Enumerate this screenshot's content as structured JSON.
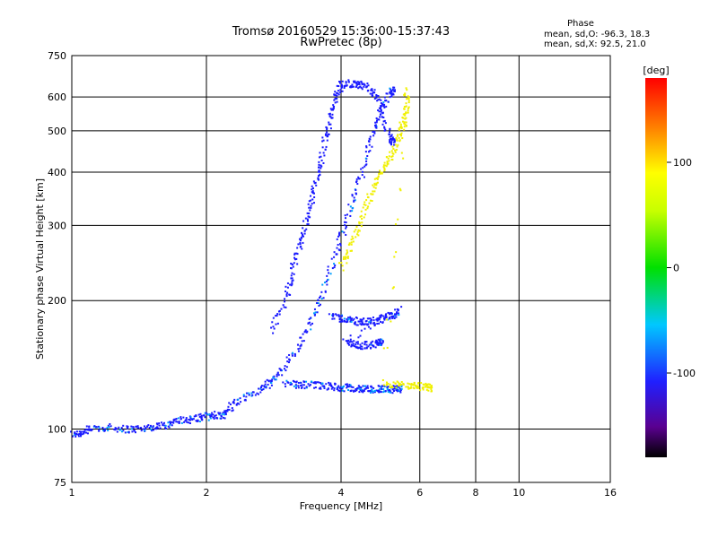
{
  "chart_data": {
    "type": "scatter",
    "title": "Tromsø 20160529 15:36:00-15:37:43",
    "subtitle": "RwPretec (8p)",
    "xlabel": "Frequency [MHz]",
    "ylabel": "Stationary phase Virtual Height [km]",
    "x_scale": "log",
    "y_scale": "log",
    "xlim": [
      1,
      16
    ],
    "ylim": [
      75,
      750
    ],
    "x_ticks": [
      "1",
      "2",
      "4",
      "6",
      "8",
      "10",
      "16"
    ],
    "x_tick_values": [
      1,
      2,
      4,
      6,
      8,
      10,
      16
    ],
    "y_ticks": [
      "75",
      "100",
      "200",
      "300",
      "400",
      "500",
      "600",
      "750"
    ],
    "y_tick_values": [
      75,
      100,
      200,
      300,
      400,
      500,
      600,
      750
    ],
    "grid": true,
    "colorbar": {
      "label": "[deg]",
      "range": [
        -180,
        180
      ],
      "ticks": [
        "100",
        "0",
        "-100"
      ],
      "tick_values": [
        100,
        0,
        -100
      ]
    },
    "stats": {
      "header": "Phase",
      "o_line": "mean, sd,O: -96.3, 18.3",
      "x_line": "mean, sd,X:  92.5, 21.0"
    },
    "traces": [
      {
        "name_hint": "O-mode low F trace",
        "phase": -95,
        "points": [
          [
            1.0,
            97
          ],
          [
            1.05,
            98
          ],
          [
            1.1,
            100
          ],
          [
            1.2,
            101
          ],
          [
            1.3,
            100
          ],
          [
            1.4,
            100
          ],
          [
            1.5,
            101
          ],
          [
            1.6,
            102
          ],
          [
            1.7,
            104
          ],
          [
            1.8,
            105
          ],
          [
            1.9,
            106
          ],
          [
            2.0,
            107
          ],
          [
            2.1,
            108
          ],
          [
            2.2,
            108
          ],
          [
            2.3,
            115
          ],
          [
            2.5,
            120
          ],
          [
            2.7,
            125
          ],
          [
            2.8,
            130
          ],
          [
            3.0,
            140
          ],
          [
            3.2,
            155
          ],
          [
            3.4,
            175
          ],
          [
            3.6,
            200
          ],
          [
            3.8,
            240
          ],
          [
            4.0,
            280
          ],
          [
            4.2,
            330
          ],
          [
            4.4,
            380
          ],
          [
            4.6,
            450
          ],
          [
            4.8,
            520
          ],
          [
            5.0,
            580
          ],
          [
            5.2,
            620
          ]
        ]
      },
      {
        "name_hint": "O-mode upper trace",
        "phase": -100,
        "points": [
          [
            2.8,
            170
          ],
          [
            3.0,
            200
          ],
          [
            3.1,
            230
          ],
          [
            3.2,
            260
          ],
          [
            3.3,
            290
          ],
          [
            3.4,
            330
          ],
          [
            3.5,
            370
          ],
          [
            3.6,
            420
          ],
          [
            3.7,
            480
          ],
          [
            3.8,
            540
          ],
          [
            3.9,
            600
          ],
          [
            4.0,
            640
          ],
          [
            4.2,
            645
          ],
          [
            4.4,
            640
          ],
          [
            4.6,
            630
          ],
          [
            4.8,
            600
          ],
          [
            5.0,
            520
          ],
          [
            5.2,
            470
          ]
        ]
      },
      {
        "name_hint": "O-mode base trace",
        "phase": -92,
        "points": [
          [
            3.0,
            128
          ],
          [
            3.2,
            127
          ],
          [
            3.4,
            127
          ],
          [
            3.6,
            126
          ],
          [
            3.8,
            126
          ],
          [
            4.0,
            125
          ],
          [
            4.2,
            125
          ],
          [
            4.4,
            124
          ],
          [
            4.6,
            124
          ],
          [
            4.8,
            124
          ],
          [
            5.0,
            124
          ],
          [
            5.2,
            124
          ],
          [
            5.4,
            124
          ]
        ]
      },
      {
        "name_hint": "O-mode mid cluster",
        "phase": -98,
        "points": [
          [
            3.8,
            185
          ],
          [
            4.0,
            182
          ],
          [
            4.2,
            180
          ],
          [
            4.4,
            178
          ],
          [
            4.6,
            178
          ],
          [
            4.8,
            180
          ],
          [
            5.0,
            182
          ],
          [
            5.2,
            185
          ],
          [
            5.4,
            190
          ],
          [
            4.1,
            160
          ],
          [
            4.3,
            158
          ],
          [
            4.5,
            157
          ],
          [
            4.7,
            158
          ],
          [
            4.9,
            160
          ]
        ]
      },
      {
        "name_hint": "X-mode trace",
        "phase": 90,
        "points": [
          [
            4.0,
            240
          ],
          [
            4.2,
            270
          ],
          [
            4.4,
            300
          ],
          [
            4.6,
            340
          ],
          [
            4.8,
            380
          ],
          [
            5.0,
            410
          ],
          [
            5.2,
            440
          ],
          [
            5.4,
            480
          ],
          [
            5.5,
            520
          ],
          [
            5.6,
            560
          ],
          [
            5.6,
            620
          ],
          [
            5.0,
            128
          ],
          [
            5.4,
            127
          ],
          [
            5.8,
            126
          ],
          [
            6.0,
            126
          ],
          [
            6.3,
            125
          ]
        ]
      }
    ]
  }
}
